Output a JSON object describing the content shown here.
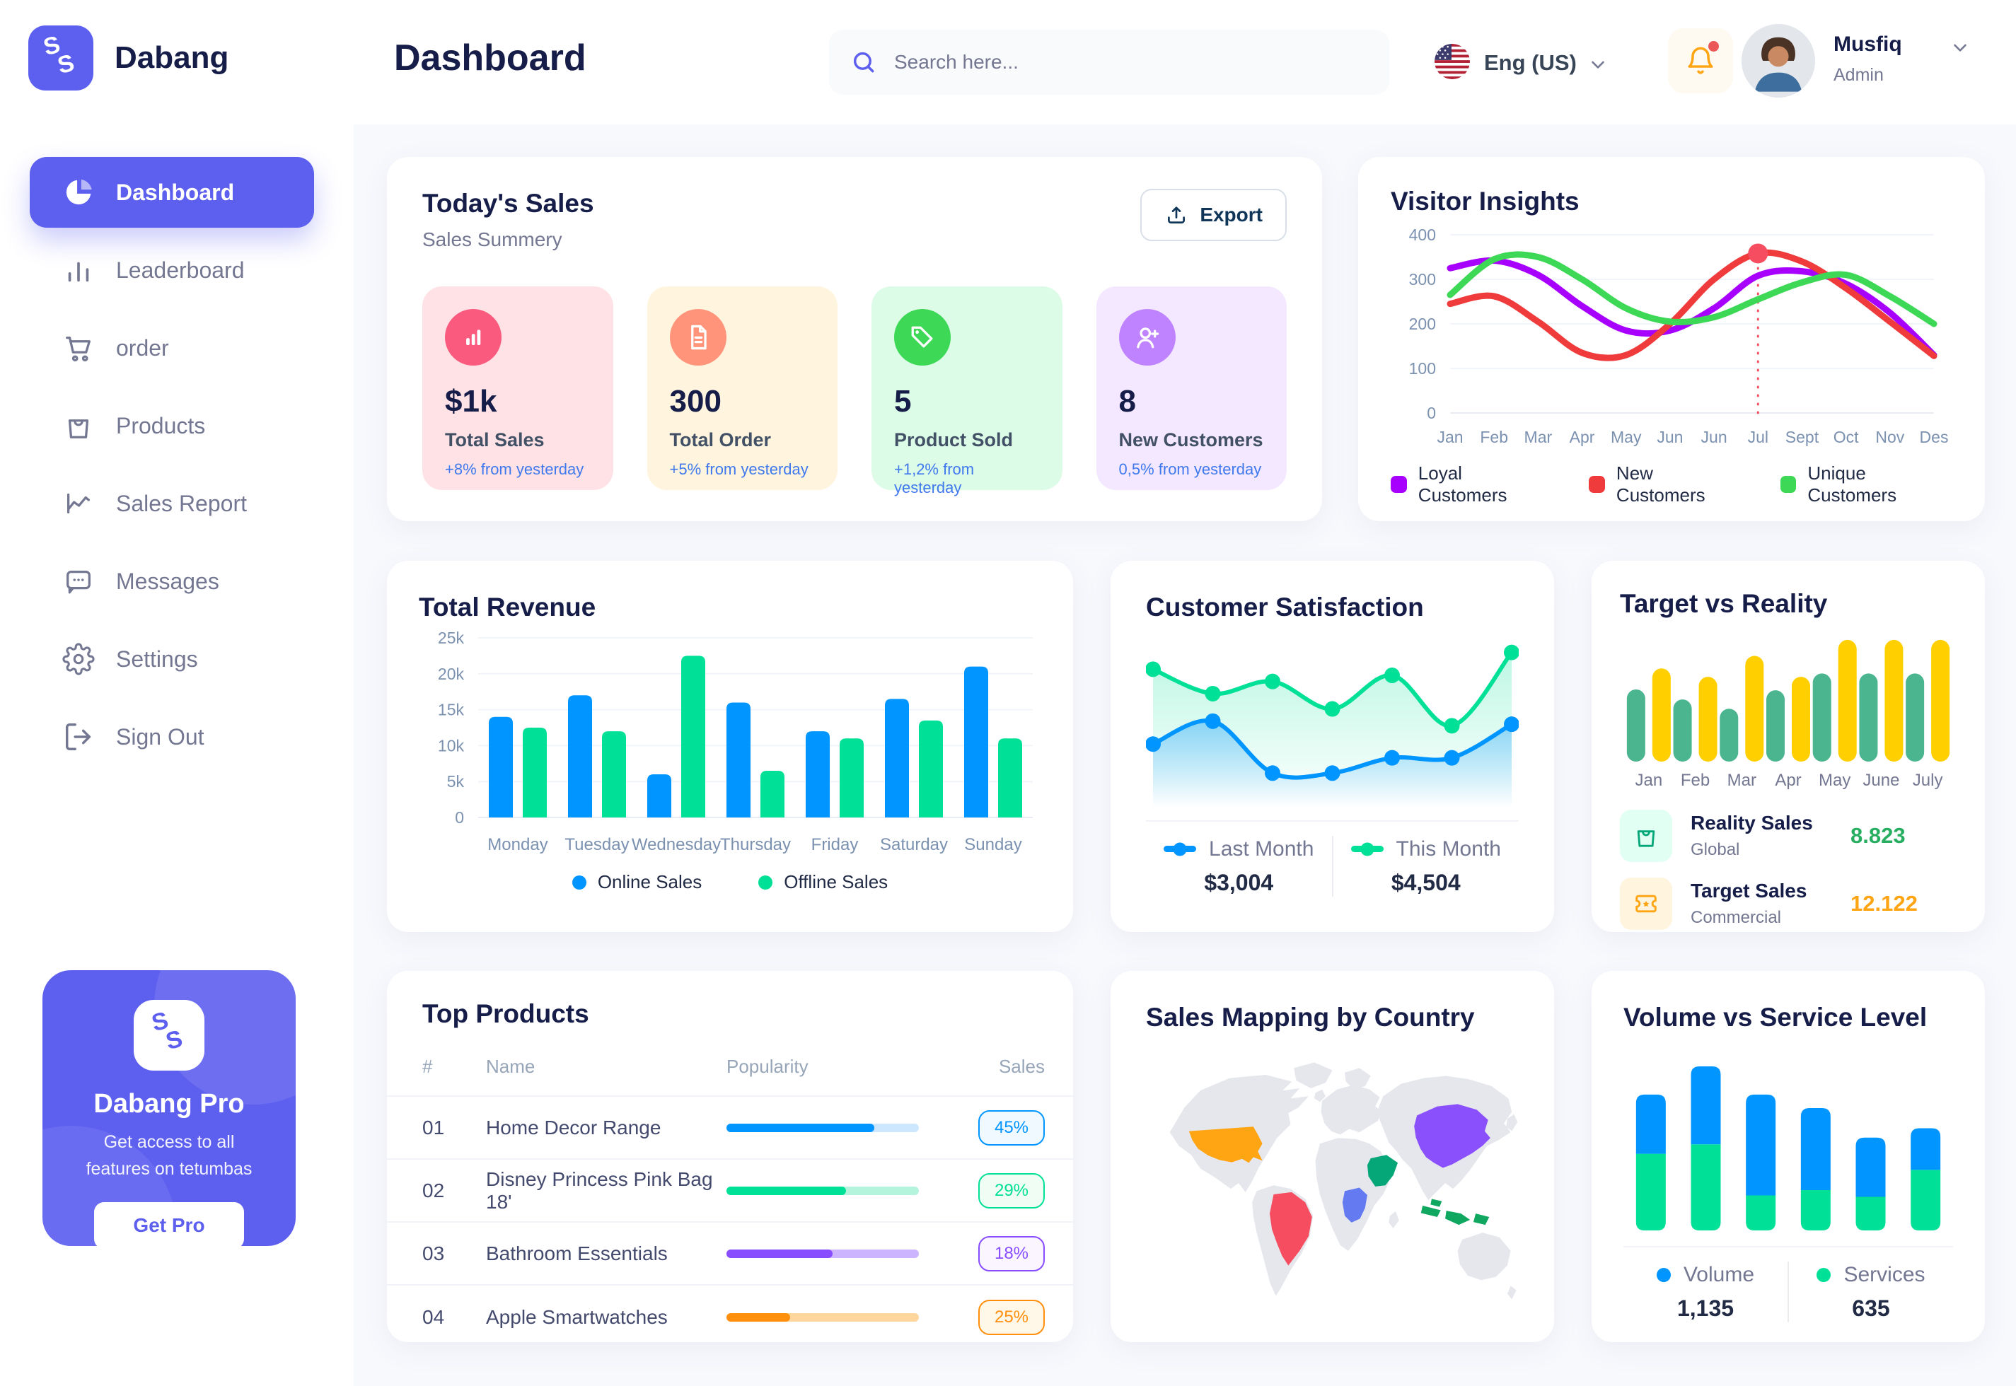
{
  "header": {
    "title": "Dashboard",
    "search_placeholder": "Search here...",
    "language": "Eng (US)",
    "user_name": "Musfiq",
    "user_role": "Admin"
  },
  "sidebar": {
    "brand": "Dabang",
    "items": [
      {
        "label": "Dashboard",
        "icon": "#i-pie",
        "cls": "nav-item active",
        "dn": "sidebar-item-dashboard"
      },
      {
        "label": "Leaderboard",
        "icon": "#i-bars",
        "cls": "nav-item",
        "dn": "sidebar-item-leaderboard"
      },
      {
        "label": "order",
        "icon": "#i-cart",
        "cls": "nav-item",
        "dn": "sidebar-item-order"
      },
      {
        "label": "Products",
        "icon": "#i-bag",
        "cls": "nav-item",
        "dn": "sidebar-item-products"
      },
      {
        "label": "Sales Report",
        "icon": "#i-graph",
        "cls": "nav-item",
        "dn": "sidebar-item-sales-report"
      },
      {
        "label": "Messages",
        "icon": "#i-chat",
        "cls": "nav-item",
        "dn": "sidebar-item-messages"
      },
      {
        "label": "Settings",
        "icon": "#i-gear",
        "cls": "nav-item",
        "dn": "sidebar-item-settings"
      },
      {
        "label": "Sign Out",
        "icon": "#i-signout",
        "cls": "nav-item",
        "dn": "sidebar-item-sign-out"
      }
    ],
    "pro": {
      "title": "Dabang Pro",
      "line1": "Get access to all",
      "line2": "features on tetumbas",
      "button": "Get Pro"
    }
  },
  "today": {
    "title": "Today's Sales",
    "subtitle": "Sales Summery",
    "export_label": "Export",
    "cards": [
      {
        "value": "$1k",
        "label": "Total Sales",
        "delta": "+8% from yesterday",
        "bg": "#FFE2E5",
        "icon_bg": "#FA5A7D",
        "icon": "#i-stat-bars"
      },
      {
        "value": "300",
        "label": "Total Order",
        "delta": "+5% from yesterday",
        "bg": "#FFF4DE",
        "icon_bg": "#FF947A",
        "icon": "#i-stat-doc"
      },
      {
        "value": "5",
        "label": "Product Sold",
        "delta": "+1,2% from yesterday",
        "bg": "#DCFCE7",
        "icon_bg": "#3CD856",
        "icon": "#i-stat-tag"
      },
      {
        "value": "8",
        "label": "New Customers",
        "delta": "0,5% from yesterday",
        "bg": "#F3E8FF",
        "icon_bg": "#BF83FF",
        "icon": "#i-stat-user"
      }
    ]
  },
  "products": {
    "title": "Top Products",
    "headers": {
      "num": "#",
      "name": "Name",
      "popularity": "Popularity",
      "sales": "Sales"
    },
    "rows": [
      {
        "num": "01",
        "name": "Home Decor Range",
        "width": "77%",
        "color": "#0095FF",
        "track": "#CDE7FF",
        "sales": "45%",
        "badge_bg": "#F0F9FF"
      },
      {
        "num": "02",
        "name": "Disney Princess Pink Bag 18'",
        "width": "62%",
        "color": "#00E096",
        "track": "#B5F4DC",
        "sales": "29%",
        "badge_bg": "#F0FDF4"
      },
      {
        "num": "03",
        "name": "Bathroom Essentials",
        "width": "55%",
        "color": "#884DFF",
        "track": "#CDB4FF",
        "sales": "18%",
        "badge_bg": "#FBF5FF"
      },
      {
        "num": "04",
        "name": "Apple Smartwatches",
        "width": "33%",
        "color": "#FF8F0D",
        "track": "#FFD79E",
        "sales": "25%",
        "badge_bg": "#FFF7E8"
      }
    ]
  },
  "target": {
    "rows": [
      {
        "sub": "Global",
        "value": "8.823",
        "value_color": "#27AE60",
        "icon": "#i-bag2",
        "icon_bg": "#E2FFF3",
        "icon_color": "#05A677"
      },
      {
        "sub": "Commercial",
        "value": "12.122",
        "value_color": "#FFA412",
        "icon": "#i-ticket",
        "icon_bg": "#FFF4DE",
        "icon_color": "#FFA412"
      }
    ]
  },
  "map": {
    "title": "Sales Mapping by Country",
    "land_color": "#E5E7EC",
    "countries": [
      {
        "name": "United States",
        "color": "#FFA412"
      },
      {
        "name": "Brazil",
        "color": "#F64E60"
      },
      {
        "name": "Saudi Arabia",
        "color": "#05A677"
      },
      {
        "name": "DR Congo",
        "color": "#647AF0"
      },
      {
        "name": "China",
        "color": "#8950FC"
      },
      {
        "name": "Indonesia",
        "color": "#10A760"
      }
    ]
  },
  "chart_data": [
    {
      "id": "visitor-insights",
      "type": "line",
      "title": "Visitor Insights",
      "x_labels": [
        "Jan",
        "Feb",
        "Mar",
        "Apr",
        "May",
        "Jun",
        "Jun",
        "Jul",
        "Sept",
        "Oct",
        "Nov",
        "Des"
      ],
      "y_ticks": [
        0,
        100,
        200,
        300,
        400
      ],
      "y_max": 400,
      "grid": true,
      "legend_position": "bottom",
      "series": [
        {
          "name": "Loyal Customers",
          "color": "#A700FF",
          "values": [
            325,
            342,
            310,
            240,
            185,
            185,
            235,
            308,
            318,
            290,
            225,
            130
          ]
        },
        {
          "name": "New Customers",
          "color": "#EF3B3B",
          "values": [
            245,
            262,
            205,
            135,
            130,
            200,
            300,
            358,
            340,
            280,
            205,
            128
          ]
        },
        {
          "name": "Unique Customers",
          "color": "#3CD856",
          "values": [
            265,
            345,
            350,
            300,
            235,
            205,
            215,
            255,
            293,
            310,
            262,
            200
          ]
        }
      ],
      "marker": {
        "x_index": 7,
        "series": 1,
        "color": "#F64E60"
      }
    },
    {
      "id": "total-revenue",
      "type": "grouped-bars",
      "title": "Total Revenue",
      "categories": [
        "Monday",
        "Tuesday",
        "Wednesday",
        "Thursday",
        "Friday",
        "Saturday",
        "Sunday"
      ],
      "y_tick_labels": [
        "0",
        "5k",
        "10k",
        "15k",
        "20k",
        "25k"
      ],
      "y_tick_values": [
        0,
        5,
        10,
        15,
        20,
        25
      ],
      "y_max": 25,
      "unit": "k",
      "grid": true,
      "legend_position": "bottom",
      "series": [
        {
          "name": "Online Sales",
          "color": "#0095FF",
          "values": [
            14,
            17,
            6,
            16,
            12,
            16.5,
            21
          ]
        },
        {
          "name": "Offline Sales",
          "color": "#00E096",
          "values": [
            12.5,
            12,
            22.5,
            6.5,
            11,
            13.5,
            11
          ]
        }
      ]
    },
    {
      "id": "customer-satisfaction",
      "type": "area",
      "title": "Customer Satisfaction",
      "y_max": 100,
      "grid": false,
      "legend_position": "bottom",
      "series": [
        {
          "name": "Last Month",
          "display_value": "$3,004",
          "color": "#0095FF",
          "values": [
            36,
            51,
            17,
            17,
            27,
            27,
            49
          ]
        },
        {
          "name": "This Month",
          "display_value": "$4,504",
          "color": "#00E096",
          "values": [
            85,
            69,
            77,
            59,
            81,
            48,
            96
          ]
        }
      ]
    },
    {
      "id": "target-vs-reality",
      "type": "grouped-bars",
      "title": "Target vs Reality",
      "categories": [
        "Jan",
        "Feb",
        "Mar",
        "Apr",
        "May",
        "June",
        "July"
      ],
      "y_max": 15,
      "bar_style": "pill",
      "grid": false,
      "legend_position": "bottom",
      "series": [
        {
          "name": "Reality Sales",
          "color": "#4AB58E",
          "values": [
            8.6,
            7.4,
            6.3,
            8.5,
            10.5,
            10.5,
            10.5
          ]
        },
        {
          "name": "Target Sales",
          "color": "#FFCF00",
          "values": [
            11.1,
            10.1,
            12.6,
            10.1,
            14.5,
            14.5,
            14.5
          ]
        }
      ]
    },
    {
      "id": "volume-vs-service",
      "type": "stacked-bars",
      "title": "Volume vs Service Level",
      "grid": false,
      "legend_position": "bottom",
      "series": [
        {
          "name": "Volume",
          "display_value": "1,135",
          "color": "#0095FF",
          "values": [
            44,
            58,
            75,
            61,
            44,
            31
          ]
        },
        {
          "name": "Services",
          "display_value": "635",
          "color": "#00E096",
          "values": [
            57,
            64,
            26,
            30,
            25,
            45
          ]
        }
      ]
    }
  ]
}
